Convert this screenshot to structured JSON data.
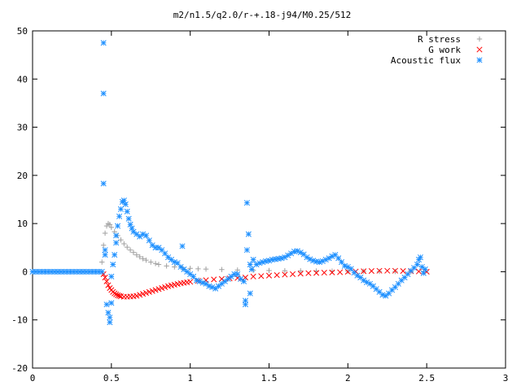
{
  "chart_data": {
    "type": "scatter",
    "title": "m2/n1.5/q2.0/r-+.18-j94/M0.25/512",
    "xlabel": "",
    "ylabel": "",
    "xlim": [
      0,
      3
    ],
    "ylim": [
      -20,
      50
    ],
    "x_ticks": [
      "0",
      "0.5",
      "1",
      "1.5",
      "2",
      "2.5",
      "3"
    ],
    "y_ticks": [
      "-20",
      "-10",
      "0",
      "10",
      "20",
      "30",
      "40",
      "50"
    ],
    "grid": false,
    "legend_position": "top-right",
    "series": [
      {
        "name": "R stress",
        "marker": "plus",
        "color": "#a0a0a0",
        "points": [
          [
            0.44,
            2.0
          ],
          [
            0.45,
            5.5
          ],
          [
            0.46,
            8.0
          ],
          [
            0.47,
            9.5
          ],
          [
            0.48,
            10.0
          ],
          [
            0.49,
            9.8
          ],
          [
            0.5,
            9.2
          ],
          [
            0.52,
            8.3
          ],
          [
            0.54,
            7.5
          ],
          [
            0.56,
            6.6
          ],
          [
            0.58,
            5.8
          ],
          [
            0.6,
            5.1
          ],
          [
            0.62,
            4.5
          ],
          [
            0.64,
            4.0
          ],
          [
            0.66,
            3.5
          ],
          [
            0.68,
            3.1
          ],
          [
            0.7,
            2.7
          ],
          [
            0.72,
            2.4
          ],
          [
            0.75,
            2.0
          ],
          [
            0.78,
            1.7
          ],
          [
            0.8,
            1.5
          ],
          [
            0.85,
            1.2
          ],
          [
            0.9,
            1.0
          ],
          [
            0.95,
            0.8
          ],
          [
            1.0,
            0.7
          ],
          [
            1.05,
            0.6
          ],
          [
            1.1,
            0.55
          ],
          [
            1.2,
            0.45
          ],
          [
            1.3,
            0.35
          ],
          [
            1.4,
            0.3
          ],
          [
            1.5,
            0.25
          ],
          [
            1.6,
            0.2
          ],
          [
            1.7,
            0.18
          ],
          [
            1.8,
            0.15
          ],
          [
            1.9,
            0.12
          ],
          [
            2.0,
            0.1
          ],
          [
            2.1,
            0.08
          ],
          [
            2.2,
            0.06
          ],
          [
            2.3,
            0.05
          ],
          [
            2.4,
            0.04
          ],
          [
            2.48,
            0.02
          ]
        ]
      },
      {
        "name": "G work",
        "marker": "cross",
        "color": "#ff0000",
        "points": [
          [
            0.45,
            -0.5
          ],
          [
            0.46,
            -1.2
          ],
          [
            0.47,
            -2.0
          ],
          [
            0.48,
            -2.8
          ],
          [
            0.49,
            -3.4
          ],
          [
            0.5,
            -3.8
          ],
          [
            0.51,
            -4.2
          ],
          [
            0.52,
            -4.5
          ],
          [
            0.53,
            -4.7
          ],
          [
            0.54,
            -4.9
          ],
          [
            0.55,
            -5.0
          ],
          [
            0.56,
            -5.1
          ],
          [
            0.58,
            -5.2
          ],
          [
            0.6,
            -5.2
          ],
          [
            0.62,
            -5.15
          ],
          [
            0.64,
            -5.1
          ],
          [
            0.66,
            -5.0
          ],
          [
            0.68,
            -4.8
          ],
          [
            0.7,
            -4.6
          ],
          [
            0.72,
            -4.4
          ],
          [
            0.74,
            -4.2
          ],
          [
            0.76,
            -4.0
          ],
          [
            0.78,
            -3.8
          ],
          [
            0.8,
            -3.6
          ],
          [
            0.82,
            -3.4
          ],
          [
            0.84,
            -3.2
          ],
          [
            0.86,
            -3.0
          ],
          [
            0.88,
            -2.85
          ],
          [
            0.9,
            -2.7
          ],
          [
            0.92,
            -2.55
          ],
          [
            0.94,
            -2.4
          ],
          [
            0.96,
            -2.3
          ],
          [
            0.98,
            -2.2
          ],
          [
            1.0,
            -2.1
          ],
          [
            1.05,
            -1.9
          ],
          [
            1.1,
            -1.75
          ],
          [
            1.15,
            -1.6
          ],
          [
            1.2,
            -1.5
          ],
          [
            1.25,
            -1.4
          ],
          [
            1.3,
            -1.3
          ],
          [
            1.35,
            -1.2
          ],
          [
            1.4,
            -1.0
          ],
          [
            1.45,
            -0.9
          ],
          [
            1.5,
            -0.8
          ],
          [
            1.55,
            -0.7
          ],
          [
            1.6,
            -0.6
          ],
          [
            1.65,
            -0.5
          ],
          [
            1.7,
            -0.4
          ],
          [
            1.75,
            -0.3
          ],
          [
            1.8,
            -0.25
          ],
          [
            1.85,
            -0.2
          ],
          [
            1.9,
            -0.15
          ],
          [
            1.95,
            -0.1
          ],
          [
            2.0,
            0.0
          ],
          [
            2.05,
            0.05
          ],
          [
            2.1,
            0.1
          ],
          [
            2.15,
            0.15
          ],
          [
            2.2,
            0.2
          ],
          [
            2.25,
            0.2
          ],
          [
            2.3,
            0.2
          ],
          [
            2.35,
            0.15
          ],
          [
            2.4,
            0.1
          ],
          [
            2.45,
            0.05
          ],
          [
            2.5,
            0.0
          ]
        ]
      },
      {
        "name": "Acoustic flux",
        "marker": "star",
        "color": "#1e90ff",
        "points": [
          [
            0.0,
            0.0
          ],
          [
            0.02,
            0.0
          ],
          [
            0.04,
            0.0
          ],
          [
            0.06,
            0.0
          ],
          [
            0.08,
            0.0
          ],
          [
            0.1,
            0.0
          ],
          [
            0.12,
            0.0
          ],
          [
            0.14,
            0.0
          ],
          [
            0.16,
            0.0
          ],
          [
            0.18,
            0.0
          ],
          [
            0.2,
            0.0
          ],
          [
            0.22,
            0.0
          ],
          [
            0.24,
            0.0
          ],
          [
            0.26,
            0.0
          ],
          [
            0.28,
            0.0
          ],
          [
            0.3,
            0.0
          ],
          [
            0.32,
            0.0
          ],
          [
            0.34,
            0.0
          ],
          [
            0.36,
            0.0
          ],
          [
            0.38,
            0.0
          ],
          [
            0.4,
            0.0
          ],
          [
            0.42,
            0.0
          ],
          [
            0.44,
            0.0
          ],
          [
            0.45,
            47.5
          ],
          [
            0.45,
            37.0
          ],
          [
            0.45,
            18.3
          ],
          [
            0.46,
            4.5
          ],
          [
            0.46,
            3.5
          ],
          [
            0.47,
            -6.8
          ],
          [
            0.48,
            -8.5
          ],
          [
            0.49,
            -9.5
          ],
          [
            0.49,
            -10.5
          ],
          [
            0.5,
            -6.5
          ],
          [
            0.5,
            -1.0
          ],
          [
            0.51,
            1.5
          ],
          [
            0.52,
            3.5
          ],
          [
            0.53,
            6.0
          ],
          [
            0.53,
            7.5
          ],
          [
            0.54,
            9.5
          ],
          [
            0.55,
            11.5
          ],
          [
            0.56,
            13.0
          ],
          [
            0.57,
            14.5
          ],
          [
            0.58,
            14.8
          ],
          [
            0.59,
            14.0
          ],
          [
            0.6,
            12.5
          ],
          [
            0.61,
            11.0
          ],
          [
            0.62,
            9.8
          ],
          [
            0.63,
            9.0
          ],
          [
            0.64,
            8.3
          ],
          [
            0.66,
            7.8
          ],
          [
            0.68,
            7.3
          ],
          [
            0.7,
            7.8
          ],
          [
            0.72,
            7.5
          ],
          [
            0.74,
            6.5
          ],
          [
            0.76,
            5.5
          ],
          [
            0.78,
            5.0
          ],
          [
            0.8,
            5.0
          ],
          [
            0.82,
            4.5
          ],
          [
            0.84,
            3.8
          ],
          [
            0.86,
            3.0
          ],
          [
            0.88,
            2.5
          ],
          [
            0.9,
            2.0
          ],
          [
            0.92,
            1.8
          ],
          [
            0.94,
            1.0
          ],
          [
            0.95,
            5.3
          ],
          [
            0.96,
            0.5
          ],
          [
            0.98,
            0.0
          ],
          [
            1.0,
            -0.5
          ],
          [
            1.02,
            -1.0
          ],
          [
            1.04,
            -1.8
          ],
          [
            1.06,
            -2.0
          ],
          [
            1.08,
            -2.3
          ],
          [
            1.1,
            -2.5
          ],
          [
            1.12,
            -3.0
          ],
          [
            1.14,
            -3.2
          ],
          [
            1.16,
            -3.5
          ],
          [
            1.18,
            -3.0
          ],
          [
            1.2,
            -2.5
          ],
          [
            1.22,
            -2.0
          ],
          [
            1.24,
            -1.5
          ],
          [
            1.26,
            -1.0
          ],
          [
            1.28,
            -0.5
          ],
          [
            1.3,
            -0.5
          ],
          [
            1.32,
            -1.5
          ],
          [
            1.34,
            -2.0
          ],
          [
            1.35,
            -6.0
          ],
          [
            1.35,
            -6.8
          ],
          [
            1.36,
            4.5
          ],
          [
            1.36,
            14.3
          ],
          [
            1.37,
            7.8
          ],
          [
            1.38,
            1.5
          ],
          [
            1.38,
            -4.5
          ],
          [
            1.39,
            0.5
          ],
          [
            1.4,
            2.5
          ],
          [
            1.42,
            1.5
          ],
          [
            1.44,
            1.8
          ],
          [
            1.46,
            2.0
          ],
          [
            1.48,
            2.2
          ],
          [
            1.5,
            2.3
          ],
          [
            1.52,
            2.5
          ],
          [
            1.54,
            2.6
          ],
          [
            1.56,
            2.7
          ],
          [
            1.58,
            2.8
          ],
          [
            1.6,
            3.0
          ],
          [
            1.62,
            3.4
          ],
          [
            1.64,
            3.8
          ],
          [
            1.66,
            4.2
          ],
          [
            1.68,
            4.3
          ],
          [
            1.7,
            4.0
          ],
          [
            1.72,
            3.6
          ],
          [
            1.74,
            3.0
          ],
          [
            1.76,
            2.6
          ],
          [
            1.78,
            2.3
          ],
          [
            1.8,
            2.1
          ],
          [
            1.82,
            2.0
          ],
          [
            1.84,
            2.2
          ],
          [
            1.86,
            2.5
          ],
          [
            1.88,
            2.8
          ],
          [
            1.9,
            3.2
          ],
          [
            1.92,
            3.5
          ],
          [
            1.94,
            2.8
          ],
          [
            1.96,
            2.0
          ],
          [
            1.98,
            1.2
          ],
          [
            2.0,
            1.0
          ],
          [
            2.02,
            0.6
          ],
          [
            2.04,
            -0.2
          ],
          [
            2.06,
            -0.8
          ],
          [
            2.08,
            -1.2
          ],
          [
            2.1,
            -1.8
          ],
          [
            2.12,
            -2.2
          ],
          [
            2.14,
            -2.5
          ],
          [
            2.16,
            -3.0
          ],
          [
            2.18,
            -3.6
          ],
          [
            2.2,
            -4.2
          ],
          [
            2.22,
            -4.8
          ],
          [
            2.24,
            -5.0
          ],
          [
            2.26,
            -4.5
          ],
          [
            2.28,
            -3.8
          ],
          [
            2.3,
            -3.2
          ],
          [
            2.32,
            -2.5
          ],
          [
            2.34,
            -1.8
          ],
          [
            2.36,
            -1.2
          ],
          [
            2.38,
            -0.5
          ],
          [
            2.4,
            0.2
          ],
          [
            2.42,
            0.8
          ],
          [
            2.44,
            1.5
          ],
          [
            2.45,
            2.5
          ],
          [
            2.46,
            3.0
          ],
          [
            2.47,
            1.0
          ],
          [
            2.48,
            -0.3
          ],
          [
            2.49,
            0.5
          ]
        ]
      }
    ]
  }
}
